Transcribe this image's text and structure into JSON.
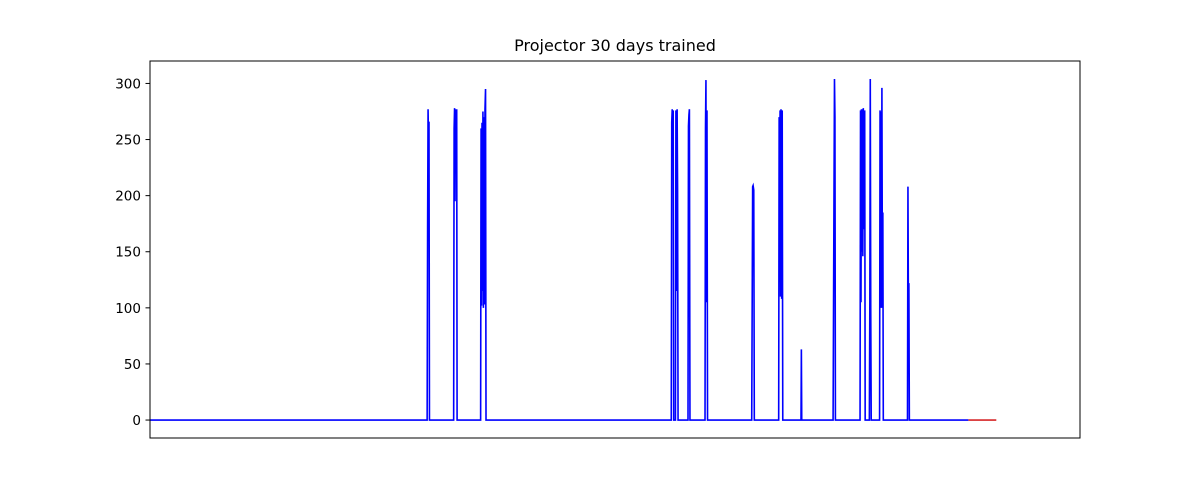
{
  "chart_data": {
    "type": "line",
    "title": "Projector 30 days trained",
    "xlabel": "",
    "ylabel": "",
    "x_ticks_visible": false,
    "xlim": [
      0,
      1000
    ],
    "ylim": [
      -16,
      320
    ],
    "yticks": [
      0,
      50,
      100,
      150,
      200,
      250,
      300
    ],
    "grid": false,
    "series": [
      {
        "color": "#0000ff",
        "points": [
          [
            0,
            0
          ],
          [
            298,
            0
          ],
          [
            298.5,
            170
          ],
          [
            299,
            277
          ],
          [
            299.6,
            240
          ],
          [
            300,
            266
          ],
          [
            300.5,
            0
          ],
          [
            326.5,
            0
          ],
          [
            327,
            260
          ],
          [
            327.5,
            278
          ],
          [
            328,
            195
          ],
          [
            328.5,
            277
          ],
          [
            329.2,
            230
          ],
          [
            329.8,
            277
          ],
          [
            330.2,
            0
          ],
          [
            355.5,
            0
          ],
          [
            356,
            260
          ],
          [
            356.5,
            102
          ],
          [
            357,
            265
          ],
          [
            357.5,
            115
          ],
          [
            358,
            275
          ],
          [
            358.5,
            100
          ],
          [
            359,
            270
          ],
          [
            359.6,
            103
          ],
          [
            360.2,
            277
          ],
          [
            360.8,
            295
          ],
          [
            361.3,
            0
          ],
          [
            560.5,
            0
          ],
          [
            561,
            265
          ],
          [
            561.5,
            277
          ],
          [
            562,
            240
          ],
          [
            562.6,
            276
          ],
          [
            563.1,
            0
          ],
          [
            565,
            0
          ],
          [
            565.5,
            276
          ],
          [
            566.2,
            115
          ],
          [
            566.8,
            277
          ],
          [
            567.3,
            205
          ],
          [
            567.8,
            0
          ],
          [
            578.5,
            0
          ],
          [
            579,
            262
          ],
          [
            579.5,
            272
          ],
          [
            580,
            277
          ],
          [
            580.6,
            0
          ],
          [
            596.8,
            0
          ],
          [
            597.3,
            260
          ],
          [
            597.8,
            303
          ],
          [
            598.3,
            105
          ],
          [
            598.9,
            276
          ],
          [
            599.5,
            0
          ],
          [
            647,
            0
          ],
          [
            647.5,
            100
          ],
          [
            648,
            208
          ],
          [
            648.5,
            209
          ],
          [
            649.2,
            205
          ],
          [
            649.8,
            0
          ],
          [
            676,
            0
          ],
          [
            676.5,
            270
          ],
          [
            677,
            230
          ],
          [
            677.5,
            276
          ],
          [
            678,
            110
          ],
          [
            678.5,
            277
          ],
          [
            679.2,
            108
          ],
          [
            679.8,
            276
          ],
          [
            680.4,
            0
          ],
          [
            700,
            0
          ],
          [
            700.4,
            63
          ],
          [
            700.8,
            0
          ],
          [
            734.5,
            0
          ],
          [
            735,
            105
          ],
          [
            735.5,
            205
          ],
          [
            736,
            304
          ],
          [
            736.5,
            270
          ],
          [
            737,
            0
          ],
          [
            763.5,
            0
          ],
          [
            764,
            276
          ],
          [
            764.5,
            105
          ],
          [
            765,
            277
          ],
          [
            765.5,
            150
          ],
          [
            766,
            277
          ],
          [
            766.5,
            146
          ],
          [
            767,
            278
          ],
          [
            767.5,
            170
          ],
          [
            768,
            217
          ],
          [
            768.5,
            276
          ],
          [
            769,
            0
          ],
          [
            773.5,
            0
          ],
          [
            774,
            103
          ],
          [
            774.5,
            304
          ],
          [
            775,
            100
          ],
          [
            775.5,
            0
          ],
          [
            784.5,
            0
          ],
          [
            785,
            276
          ],
          [
            785.5,
            100
          ],
          [
            786,
            275
          ],
          [
            786.5,
            100
          ],
          [
            787,
            296
          ],
          [
            787.5,
            120
          ],
          [
            788,
            185
          ],
          [
            788.5,
            0
          ],
          [
            814.5,
            0
          ],
          [
            815,
            208
          ],
          [
            815.5,
            100
          ],
          [
            816,
            122
          ],
          [
            816.5,
            0
          ],
          [
            880,
            0
          ]
        ]
      },
      {
        "color": "#d62728",
        "points": [
          [
            880,
            0
          ],
          [
            910,
            0
          ]
        ]
      }
    ]
  }
}
